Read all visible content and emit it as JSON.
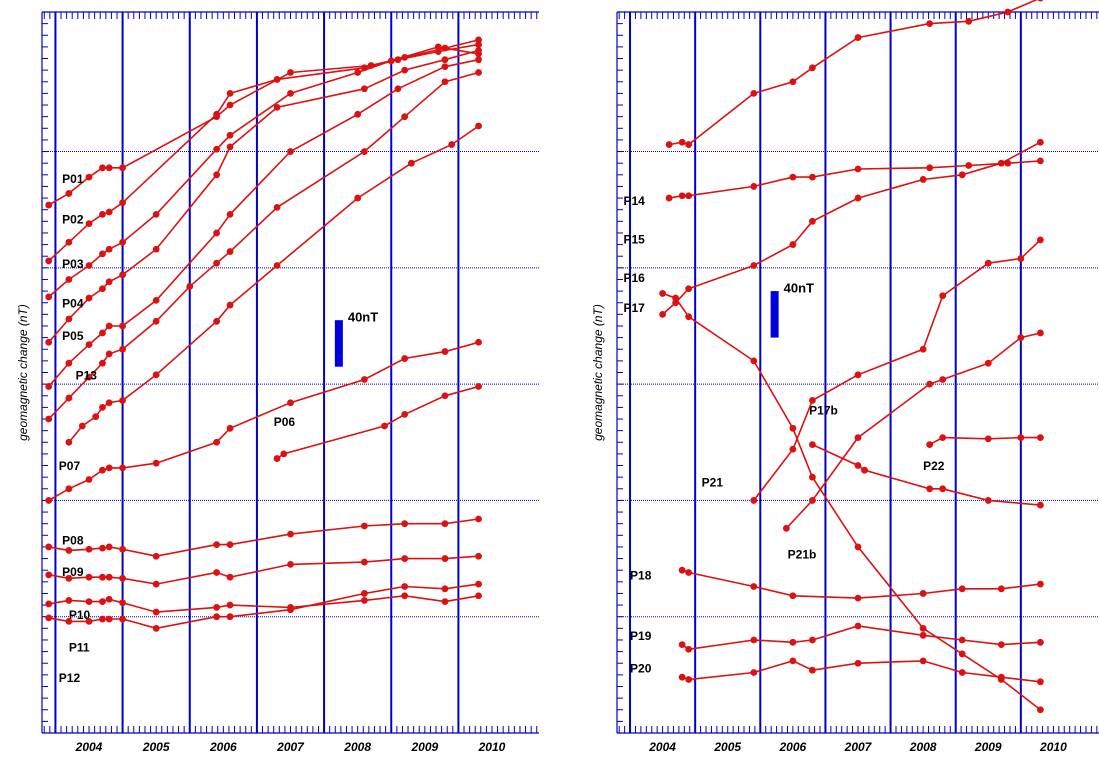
{
  "colors": {
    "axis": "#0000cc",
    "series": "#dd1111",
    "scalebar": "#0000dd"
  },
  "chart_data": [
    {
      "type": "line",
      "panel": "left",
      "ylabel": "geomagnetic change (nT)",
      "xlim": [
        2003.3,
        2010.7
      ],
      "ylim": [
        0,
        620
      ],
      "x_ticks": [
        "2004",
        "2005",
        "2006",
        "2007",
        "2008",
        "2009",
        "2010"
      ],
      "x_tick_values": [
        2004,
        2005,
        2006,
        2007,
        2008,
        2009,
        2010
      ],
      "year_separators": [
        2003.5,
        2004.5,
        2005.5,
        2006.5,
        2007.5,
        2008.5,
        2009.5
      ],
      "grid": "horizontal dotted lines at 100 nT spacing",
      "gridlines_y": [
        100,
        200,
        300,
        400,
        500
      ],
      "scale_bar": {
        "label": "40nT",
        "nT": 40,
        "x": 2007.72,
        "y_center": 335
      },
      "series": [
        {
          "name": "P01",
          "label_at": [
            2003.6,
            473
          ],
          "x": [
            2003.4,
            2003.7,
            2004.0,
            2004.2,
            2004.3,
            2004.5,
            2005.9,
            2006.1,
            2007.0,
            2008.2,
            2008.7,
            2009.3,
            2009.8
          ],
          "y": [
            454,
            464,
            478,
            486,
            486,
            486,
            530,
            540,
            568,
            574,
            581,
            589,
            596
          ]
        },
        {
          "name": "P02",
          "label_at": [
            2003.6,
            438
          ],
          "x": [
            2003.4,
            2003.7,
            2004.0,
            2004.2,
            2004.3,
            2004.5,
            2005.9,
            2006.1,
            2006.8,
            2008.1,
            2008.6,
            2009.2,
            2009.8
          ],
          "y": [
            406,
            422,
            438,
            446,
            448,
            456,
            532,
            550,
            562,
            572,
            579,
            586,
            592
          ]
        },
        {
          "name": "P03",
          "label_at": [
            2003.6,
            400
          ],
          "x": [
            2003.4,
            2003.7,
            2004.0,
            2004.2,
            2004.3,
            2004.5,
            2005.0,
            2005.9,
            2006.1,
            2007.0,
            2008.0,
            2008.5,
            2009.2,
            2009.8
          ],
          "y": [
            375,
            390,
            402,
            412,
            416,
            422,
            446,
            502,
            514,
            550,
            568,
            578,
            590,
            584
          ]
        },
        {
          "name": "P04",
          "label_at": [
            2003.6,
            366
          ],
          "x": [
            2003.4,
            2003.7,
            2004.0,
            2004.2,
            2004.3,
            2004.5,
            2005.0,
            2005.9,
            2006.1,
            2006.8,
            2008.1,
            2008.7,
            2009.3,
            2009.8
          ],
          "y": [
            336,
            356,
            374,
            382,
            388,
            394,
            416,
            480,
            504,
            538,
            554,
            570,
            579,
            587
          ]
        },
        {
          "name": "P05",
          "label_at": [
            2003.6,
            338
          ],
          "x": [
            2003.4,
            2003.7,
            2004.0,
            2004.2,
            2004.3,
            2004.5,
            2005.0,
            2005.9,
            2006.1,
            2007.0,
            2008.0,
            2008.6,
            2009.3,
            2009.8
          ],
          "y": [
            298,
            318,
            334,
            344,
            350,
            350,
            372,
            430,
            446,
            500,
            532,
            554,
            573,
            579
          ]
        },
        {
          "name": "P13",
          "label_at": [
            2003.8,
            304
          ],
          "x": [
            2003.4,
            2003.7,
            2004.0,
            2004.2,
            2004.3,
            2004.5,
            2005.0,
            2005.5,
            2005.9,
            2006.1,
            2006.8,
            2008.1,
            2008.7,
            2009.3,
            2009.8
          ],
          "y": [
            270,
            288,
            306,
            318,
            326,
            330,
            354,
            384,
            404,
            414,
            452,
            500,
            530,
            560,
            568
          ]
        },
        {
          "name": "P06",
          "label_at": [
            2006.75,
            264
          ],
          "x": [
            2006.8,
            2006.9,
            2008.4,
            2008.7,
            2009.3,
            2009.8
          ],
          "y": [
            236,
            240,
            264,
            274,
            290,
            298
          ]
        },
        {
          "name": "P07",
          "label_at": [
            2003.55,
            226
          ],
          "x": [
            2003.7,
            2003.9,
            2004.1,
            2004.2,
            2004.3,
            2004.5,
            2005.0,
            2005.9,
            2006.1,
            2006.8,
            2008.0,
            2008.8,
            2009.4,
            2009.8
          ],
          "y": [
            250,
            264,
            272,
            280,
            284,
            286,
            308,
            354,
            368,
            402,
            460,
            490,
            506,
            522
          ]
        },
        {
          "name": "P08",
          "label_at": [
            2003.6,
            162
          ],
          "x": [
            2003.4,
            2003.7,
            2004.0,
            2004.2,
            2004.3,
            2004.5,
            2005.0,
            2005.9,
            2006.1,
            2007.0,
            2008.1,
            2008.7,
            2009.3,
            2009.8
          ],
          "y": [
            200,
            210,
            218,
            226,
            228,
            228,
            232,
            250,
            262,
            284,
            304,
            322,
            328,
            336
          ]
        },
        {
          "name": "P09",
          "label_at": [
            2003.6,
            135
          ],
          "x": [
            2003.4,
            2003.7,
            2004.0,
            2004.2,
            2004.3,
            2004.5,
            2005.0,
            2005.9,
            2006.1,
            2007.0,
            2008.1,
            2008.7,
            2009.3,
            2009.8
          ],
          "y": [
            160,
            157,
            158,
            159,
            160,
            158,
            152,
            162,
            162,
            171,
            178,
            180,
            180,
            184
          ]
        },
        {
          "name": "P10",
          "label_at": [
            2003.7,
            98
          ],
          "x": [
            2003.4,
            2003.7,
            2004.0,
            2004.2,
            2004.3,
            2004.5,
            2005.0,
            2005.9,
            2006.1,
            2007.0,
            2008.1,
            2008.7,
            2009.3,
            2009.8
          ],
          "y": [
            136,
            133,
            134,
            134,
            134,
            133,
            128,
            138,
            134,
            145,
            147,
            150,
            150,
            152
          ]
        },
        {
          "name": "P11",
          "label_at": [
            2003.7,
            70
          ],
          "x": [
            2003.4,
            2003.7,
            2004.0,
            2004.2,
            2004.3,
            2004.5,
            2005.0,
            2005.9,
            2006.1,
            2007.0,
            2008.1,
            2008.7,
            2009.3,
            2009.8
          ],
          "y": [
            111,
            114,
            113,
            113,
            115,
            112,
            104,
            108,
            110,
            108,
            114,
            118,
            113,
            118
          ]
        },
        {
          "name": "P12",
          "label_at": [
            2003.55,
            44
          ],
          "x": [
            2003.4,
            2003.7,
            2004.0,
            2004.2,
            2004.3,
            2004.5,
            2005.0,
            2005.9,
            2006.1,
            2007.0,
            2008.1,
            2008.7,
            2009.3,
            2009.8
          ],
          "y": [
            99,
            96,
            96,
            98,
            98,
            98,
            90,
            100,
            100,
            106,
            120,
            126,
            124,
            128
          ]
        }
      ]
    },
    {
      "type": "line",
      "panel": "right",
      "ylabel": "geomagnetic change (nT)",
      "xlim": [
        2003.3,
        2010.7
      ],
      "ylim": [
        0,
        620
      ],
      "x_ticks": [
        "2004",
        "2005",
        "2006",
        "2007",
        "2008",
        "2009",
        "2010"
      ],
      "x_tick_values": [
        2004,
        2005,
        2006,
        2007,
        2008,
        2009,
        2010
      ],
      "year_separators": [
        2003.5,
        2004.5,
        2005.5,
        2006.5,
        2007.5,
        2008.5,
        2009.5
      ],
      "grid": "horizontal dotted lines at 100 nT spacing",
      "gridlines_y": [
        100,
        200,
        300,
        400,
        500
      ],
      "scale_bar": {
        "label": "40nT",
        "nT": 40,
        "x": 2005.72,
        "y_center": 360
      },
      "series": [
        {
          "name": "P14",
          "label_at": [
            2003.4,
            454
          ],
          "x": [
            2004.1,
            2004.3,
            2004.4,
            2005.4,
            2006.0,
            2006.3,
            2007.0,
            2008.1,
            2008.7,
            2009.3,
            2009.8
          ],
          "y": [
            506,
            508,
            506,
            550,
            560,
            572,
            598,
            610,
            612,
            620,
            632
          ]
        },
        {
          "name": "P15",
          "label_at": [
            2003.4,
            421
          ],
          "x": [
            2004.1,
            2004.3,
            2004.4,
            2005.4,
            2006.0,
            2006.3,
            2007.0,
            2008.1,
            2008.7,
            2009.3,
            2009.8
          ],
          "y": [
            460,
            462,
            462,
            470,
            478,
            478,
            485,
            486,
            488,
            490,
            492
          ]
        },
        {
          "name": "P16",
          "label_at": [
            2003.4,
            388
          ],
          "x": [
            2004.0,
            2004.2,
            2004.4,
            2005.4,
            2006.0,
            2006.3,
            2007.0,
            2008.0,
            2008.6,
            2009.2,
            2009.8
          ],
          "y": [
            360,
            370,
            382,
            402,
            420,
            440,
            460,
            476,
            480,
            490,
            508
          ]
        },
        {
          "name": "P17",
          "label_at": [
            2003.4,
            362
          ],
          "x": [
            2004.0,
            2004.2,
            2004.4,
            2005.4,
            2006.0,
            2006.3,
            2007.0,
            2008.0,
            2008.6,
            2009.2,
            2009.8
          ],
          "y": [
            378,
            374,
            358,
            320,
            262,
            220,
            160,
            90,
            68,
            46,
            20
          ]
        },
        {
          "name": "P17b",
          "label_at": [
            2006.25,
            274
          ],
          "x": [
            2006.3,
            2007.0,
            2007.1,
            2008.1,
            2008.3,
            2009.0,
            2009.8
          ],
          "y": [
            248,
            230,
            226,
            210,
            210,
            200,
            196
          ]
        },
        {
          "name": "P21",
          "label_at": [
            2004.6,
            212
          ],
          "x": [
            2005.4,
            2006.0,
            2006.3,
            2007.0,
            2008.0,
            2008.3,
            2009.0,
            2009.5,
            2009.8
          ],
          "y": [
            200,
            244,
            286,
            308,
            330,
            376,
            404,
            408,
            424
          ]
        },
        {
          "name": "P21b",
          "label_at": [
            2005.92,
            150
          ],
          "x": [
            2005.9,
            2006.3,
            2007.0,
            2008.1,
            2008.3,
            2009.0,
            2009.5,
            2009.8
          ],
          "y": [
            176,
            200,
            254,
            300,
            304,
            318,
            340,
            344
          ]
        },
        {
          "name": "P22",
          "label_at": [
            2008.0,
            226
          ],
          "x": [
            2008.1,
            2008.3,
            2009.0,
            2009.5,
            2009.8
          ],
          "y": [
            248,
            254,
            253,
            254,
            254
          ]
        },
        {
          "name": "P18",
          "label_at": [
            2003.5,
            132
          ],
          "x": [
            2004.3,
            2004.4,
            2005.4,
            2006.0,
            2007.0,
            2008.0,
            2008.6,
            2009.2,
            2009.8
          ],
          "y": [
            140,
            138,
            126,
            118,
            116,
            120,
            124,
            124,
            128
          ]
        },
        {
          "name": "P19",
          "label_at": [
            2003.5,
            80
          ],
          "x": [
            2004.3,
            2004.4,
            2005.4,
            2006.0,
            2006.3,
            2007.0,
            2008.0,
            2008.6,
            2009.2,
            2009.8
          ],
          "y": [
            76,
            72,
            80,
            78,
            80,
            92,
            84,
            80,
            76,
            78
          ]
        },
        {
          "name": "P20",
          "label_at": [
            2003.5,
            52
          ],
          "x": [
            2004.3,
            2004.4,
            2005.4,
            2006.0,
            2006.3,
            2007.0,
            2008.0,
            2008.6,
            2009.2,
            2009.8
          ],
          "y": [
            48,
            46,
            52,
            62,
            54,
            60,
            62,
            52,
            48,
            44
          ]
        }
      ]
    }
  ]
}
